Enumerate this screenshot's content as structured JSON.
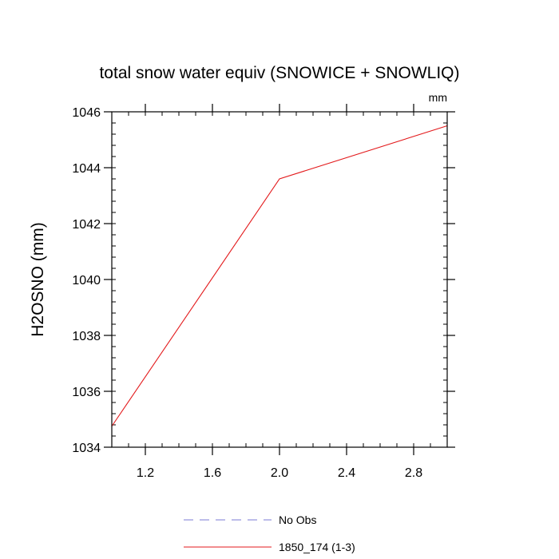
{
  "chart_data": {
    "type": "line",
    "title": "total snow water equiv (SNOWICE + SNOWLIQ)",
    "units_label": "mm",
    "ylabel": "H2OSNO  (mm)",
    "xlabel": "",
    "xlim": [
      1.0,
      3.0
    ],
    "ylim": [
      1034,
      1046
    ],
    "x_ticks": [
      1.2,
      1.6,
      2.0,
      2.4,
      2.8
    ],
    "x_tick_labels": [
      "1.2",
      "1.6",
      "2.0",
      "2.4",
      "2.8"
    ],
    "y_ticks": [
      1034,
      1036,
      1038,
      1040,
      1042,
      1044,
      1046
    ],
    "y_tick_labels": [
      "1034",
      "1036",
      "1038",
      "1040",
      "1042",
      "1044",
      "1046"
    ],
    "grid": false,
    "legend_position": "bottom-center",
    "series": [
      {
        "name": "No Obs",
        "color": "#7b7bd6",
        "dash": "dashed",
        "x": [],
        "y": []
      },
      {
        "name": "1850_174 (1-3)",
        "color": "#e31a1c",
        "dash": "solid",
        "x": [
          1.0,
          2.0,
          3.0
        ],
        "y": [
          1034.75,
          1043.6,
          1045.5
        ]
      }
    ]
  }
}
